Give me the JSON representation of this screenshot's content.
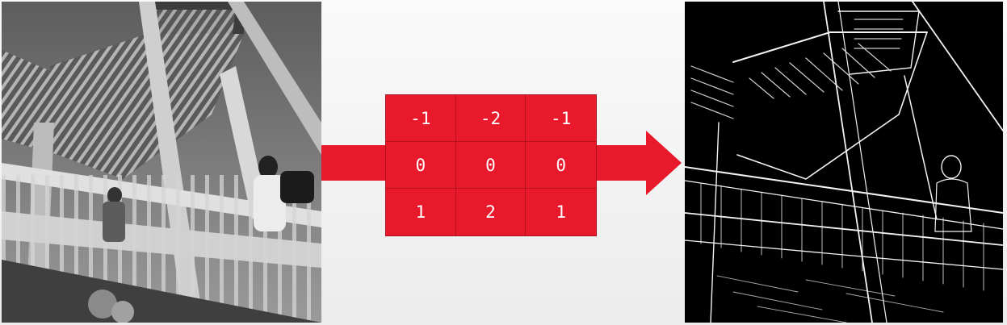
{
  "colors": {
    "accent": "#e8192a",
    "accent_dark": "#b3131f",
    "cell_text": "#ffffff",
    "output_background": "#000000"
  },
  "panels": {
    "input": {
      "icon": "grayscale-photo-staircase"
    },
    "output": {
      "icon": "edge-map-staircase"
    }
  },
  "arrow": {
    "icon": "right-arrow"
  },
  "kernel": {
    "rows": [
      [
        "-1",
        "-2",
        "-1"
      ],
      [
        "0",
        "0",
        "0"
      ],
      [
        "1",
        "2",
        "1"
      ]
    ]
  }
}
